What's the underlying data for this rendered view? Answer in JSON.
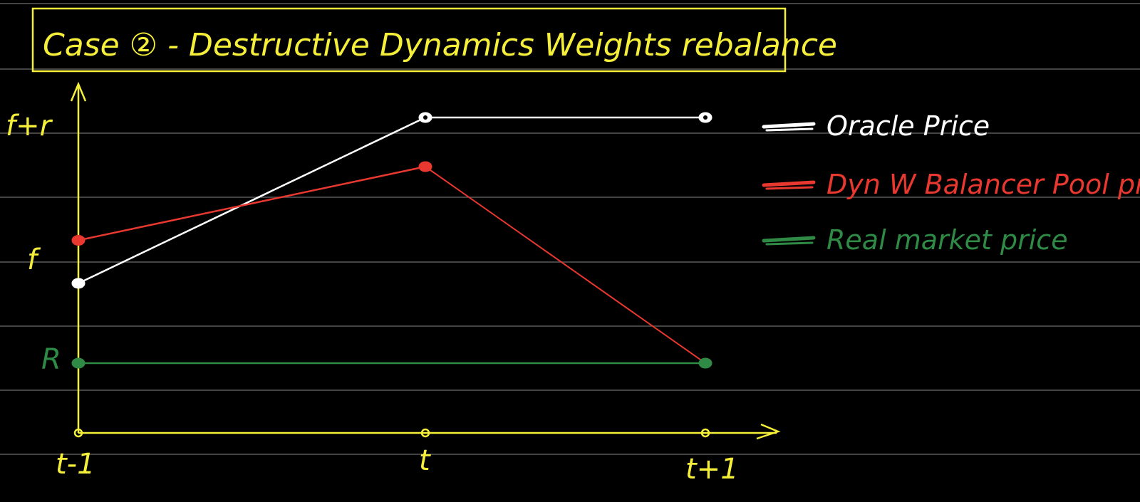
{
  "colors": {
    "background": "#000000",
    "ruled_line": "#5a5a5a",
    "axis": "#f5ef3a",
    "oracle": "#ffffff",
    "pool": "#e8382f",
    "real": "#2e8a45",
    "title_box": "#f5ef3a"
  },
  "chart_data": {
    "type": "line",
    "title": "Case ② - Destructive Dynamics Weights rebalance",
    "xlabel": "",
    "ylabel": "",
    "x_ticks": [
      "t-1",
      "t",
      "t+1"
    ],
    "y_ticks": [
      {
        "label": "f+r",
        "value": 3,
        "color_key": "axis"
      },
      {
        "label": "f",
        "value": 2,
        "color_key": "axis"
      },
      {
        "label": "R",
        "value": 1,
        "color_key": "real"
      }
    ],
    "ylim": [
      0,
      3.6
    ],
    "grid": "ruled background lines",
    "legend_position": "top-right",
    "series": [
      {
        "name": "Oracle Price",
        "color_key": "oracle",
        "points": [
          {
            "x": "t-1",
            "y": 1.65
          },
          {
            "x": "t",
            "y": 3.0
          },
          {
            "x": "t+1",
            "y": 3.0
          }
        ]
      },
      {
        "name": "Dyn W Balancer Pool price",
        "color_key": "pool",
        "points": [
          {
            "x": "t-1",
            "y": 2.0
          },
          {
            "x": "t",
            "y": 2.6
          }
        ],
        "extra_points": [
          {
            "x": "t+1",
            "y": 1.0
          }
        ]
      },
      {
        "name": "Real market price",
        "color_key": "real",
        "points": [
          {
            "x": "t-1",
            "y": 1.0
          },
          {
            "x": "t+1",
            "y": 1.0
          }
        ]
      }
    ]
  }
}
